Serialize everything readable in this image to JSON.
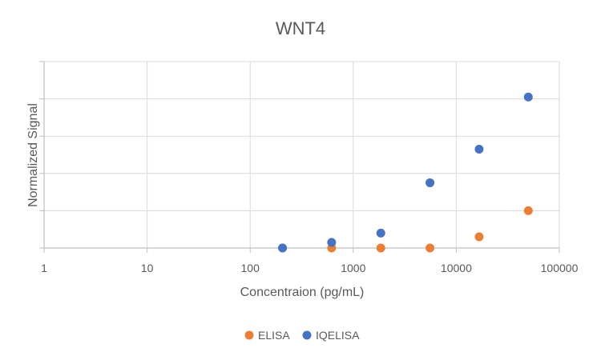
{
  "chart_data": {
    "type": "scatter",
    "title": "WNT4",
    "xlabel": "Concentraion (pg/mL)",
    "ylabel": "Normalized Signal",
    "x_scale": "log",
    "xlim": [
      1,
      100000
    ],
    "ylim": [
      0,
      5
    ],
    "x_ticks": [
      "1",
      "10",
      "100",
      "1000",
      "10000",
      "100000"
    ],
    "x_tick_values": [
      1,
      10,
      100,
      1000,
      10000,
      100000
    ],
    "y_gridlines": [
      0,
      1,
      2,
      3,
      4,
      5
    ],
    "grid": true,
    "legend_position": "bottom",
    "series": [
      {
        "name": "ELISA",
        "color": "#ED7D31",
        "x": [
          206,
          617,
          1852,
          5556,
          16667,
          50000
        ],
        "y": [
          0.0,
          0.0,
          0.0,
          0.0,
          0.3,
          1.0
        ]
      },
      {
        "name": "IQELISA",
        "color": "#4472C4",
        "x": [
          206,
          617,
          1852,
          5556,
          16667,
          50000
        ],
        "y": [
          0.0,
          0.15,
          0.4,
          1.75,
          2.65,
          4.05
        ]
      }
    ]
  }
}
